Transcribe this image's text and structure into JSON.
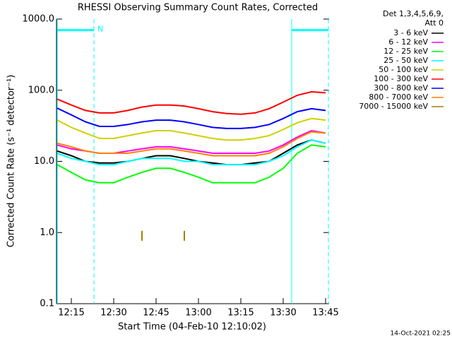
{
  "chart_data": {
    "type": "line",
    "title": "RHESSI Observing Summary Count Rates, Corrected",
    "x_label": "Start Time (04-Feb-10 12:10:02)",
    "y_label": "Corrected Count Rate (s⁻¹ detector⁻¹)",
    "legend_title": [
      "Det 1,3,4,5,6,9,",
      "Att 0"
    ],
    "footer": "14-Oct-2021 02:25",
    "log_y": true,
    "legend_position": "right",
    "xlim": [
      "12:10",
      "13:46"
    ],
    "xticks": [
      "12:15",
      "12:30",
      "12:45",
      "13:00",
      "13:15",
      "13:30",
      "13:45"
    ],
    "ylim": [
      0.1,
      1000
    ],
    "yticks": [
      0.1,
      {
        "value": 1,
        "label": "1.0"
      },
      {
        "value": 10,
        "label": "10.0"
      },
      {
        "value": 100,
        "label": "100.0"
      },
      {
        "value": 1000,
        "label": "1000.0"
      }
    ],
    "x": [
      "12:10",
      "12:15",
      "12:20",
      "12:25",
      "12:30",
      "12:35",
      "12:40",
      "12:45",
      "12:50",
      "12:55",
      "13:00",
      "13:05",
      "13:10",
      "13:15",
      "13:20",
      "13:25",
      "13:30",
      "13:35",
      "13:40",
      "13:45"
    ],
    "series": [
      {
        "name": "3 - 6 keV",
        "color": "#000000",
        "values": [
          14,
          12,
          10,
          9.5,
          9.5,
          10,
          11,
          12,
          12,
          11,
          10,
          9.5,
          9,
          9,
          9.5,
          10,
          13,
          17,
          20,
          18
        ]
      },
      {
        "name": "6 - 12 keV",
        "color": "#ff00ff",
        "values": [
          17,
          15,
          14,
          13,
          13,
          14,
          15,
          16,
          16,
          15,
          14,
          13,
          13,
          13,
          13,
          14,
          17,
          22,
          27,
          25
        ]
      },
      {
        "name": "12 - 25 keV",
        "color": "#00ff00",
        "values": [
          9,
          7,
          5.5,
          5,
          5,
          6,
          7,
          8,
          8,
          7,
          6,
          5,
          5,
          5,
          5,
          6,
          8,
          13,
          17,
          16
        ]
      },
      {
        "name": "25 - 50 keV",
        "color": "#00ffff",
        "values": [
          13,
          11,
          10,
          9,
          9,
          10,
          11,
          11,
          11,
          10,
          10,
          9,
          9,
          9,
          9,
          10,
          12,
          16,
          20,
          18
        ]
      },
      {
        "name": "50 - 100 keV",
        "color": "#d0d000",
        "values": [
          38,
          30,
          25,
          21,
          21,
          23,
          25,
          27,
          27,
          25,
          23,
          21,
          20,
          20,
          21,
          23,
          28,
          35,
          40,
          38
        ]
      },
      {
        "name": "100 - 300 keV",
        "color": "#ff0000",
        "values": [
          75,
          62,
          52,
          48,
          48,
          52,
          58,
          62,
          62,
          60,
          55,
          50,
          47,
          46,
          48,
          55,
          68,
          85,
          95,
          92
        ]
      },
      {
        "name": "300 - 800 keV",
        "color": "#0000ff",
        "values": [
          56,
          45,
          36,
          31,
          31,
          33,
          36,
          38,
          38,
          36,
          33,
          30,
          29,
          29,
          30,
          33,
          40,
          50,
          55,
          52
        ]
      },
      {
        "name": "800 - 7000 keV",
        "color": "#ff8000",
        "values": [
          18,
          16,
          14,
          13,
          13,
          13,
          14,
          15,
          15,
          14,
          13,
          12,
          12,
          12,
          12,
          13,
          16,
          21,
          26,
          25
        ]
      },
      {
        "name": "7000 - 15000 keV",
        "color": "#a08000",
        "values": [
          null,
          null,
          null,
          null,
          null,
          null,
          0.9,
          null,
          null,
          0.9,
          null,
          null,
          null,
          null,
          null,
          null,
          null,
          null,
          null,
          null
        ]
      }
    ],
    "flag_color": "#00ffff",
    "flags": [
      {
        "start": "12:10",
        "end": "12:23",
        "label": "N"
      },
      {
        "start": "13:33",
        "end": "13:46"
      }
    ]
  }
}
